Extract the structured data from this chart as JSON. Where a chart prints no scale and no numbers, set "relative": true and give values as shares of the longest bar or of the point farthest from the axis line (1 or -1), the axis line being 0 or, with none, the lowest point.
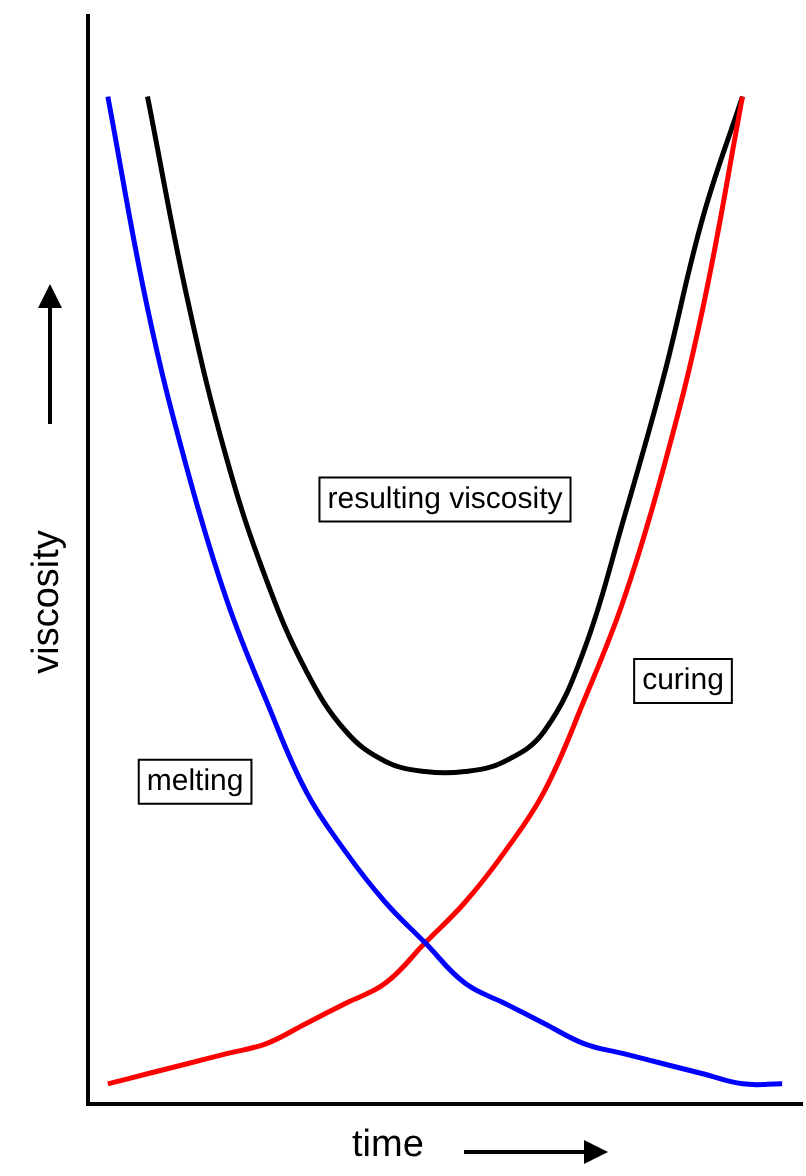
{
  "chart_data": {
    "type": "line",
    "relative": true,
    "xlabel": "time",
    "ylabel": "viscosity",
    "legend": false,
    "grid": false,
    "marker": "none",
    "line_style": "solid",
    "categories": [
      null,
      null,
      null,
      null,
      null,
      null,
      null,
      null,
      null,
      null,
      null,
      null,
      null,
      null,
      null,
      null,
      null,
      null
    ],
    "series": [
      {
        "name": "melting",
        "color": "#0000ff",
        "values": [
          1,
          0.79,
          0.63,
          0.5,
          0.4,
          0.31,
          0.25,
          0.2,
          0.16,
          0.12,
          0.1,
          0.08,
          0.06,
          0.05,
          0.04,
          0.03,
          0.02,
          0.02
        ]
      },
      {
        "name": "curing",
        "color": "#ff0000",
        "values": [
          0.02,
          0.03,
          0.04,
          0.05,
          0.06,
          0.08,
          0.1,
          0.12,
          0.16,
          0.2,
          0.25,
          0.31,
          0.4,
          0.5,
          0.63,
          0.79,
          1,
          null
        ]
      },
      {
        "name": "resulting viscosity",
        "color": "#000000",
        "values": [
          null,
          1,
          0.8,
          0.64,
          0.52,
          0.43,
          0.37,
          0.34,
          0.33,
          0.33,
          0.34,
          0.37,
          0.45,
          0.58,
          0.72,
          0.88,
          1,
          null
        ]
      }
    ]
  }
}
